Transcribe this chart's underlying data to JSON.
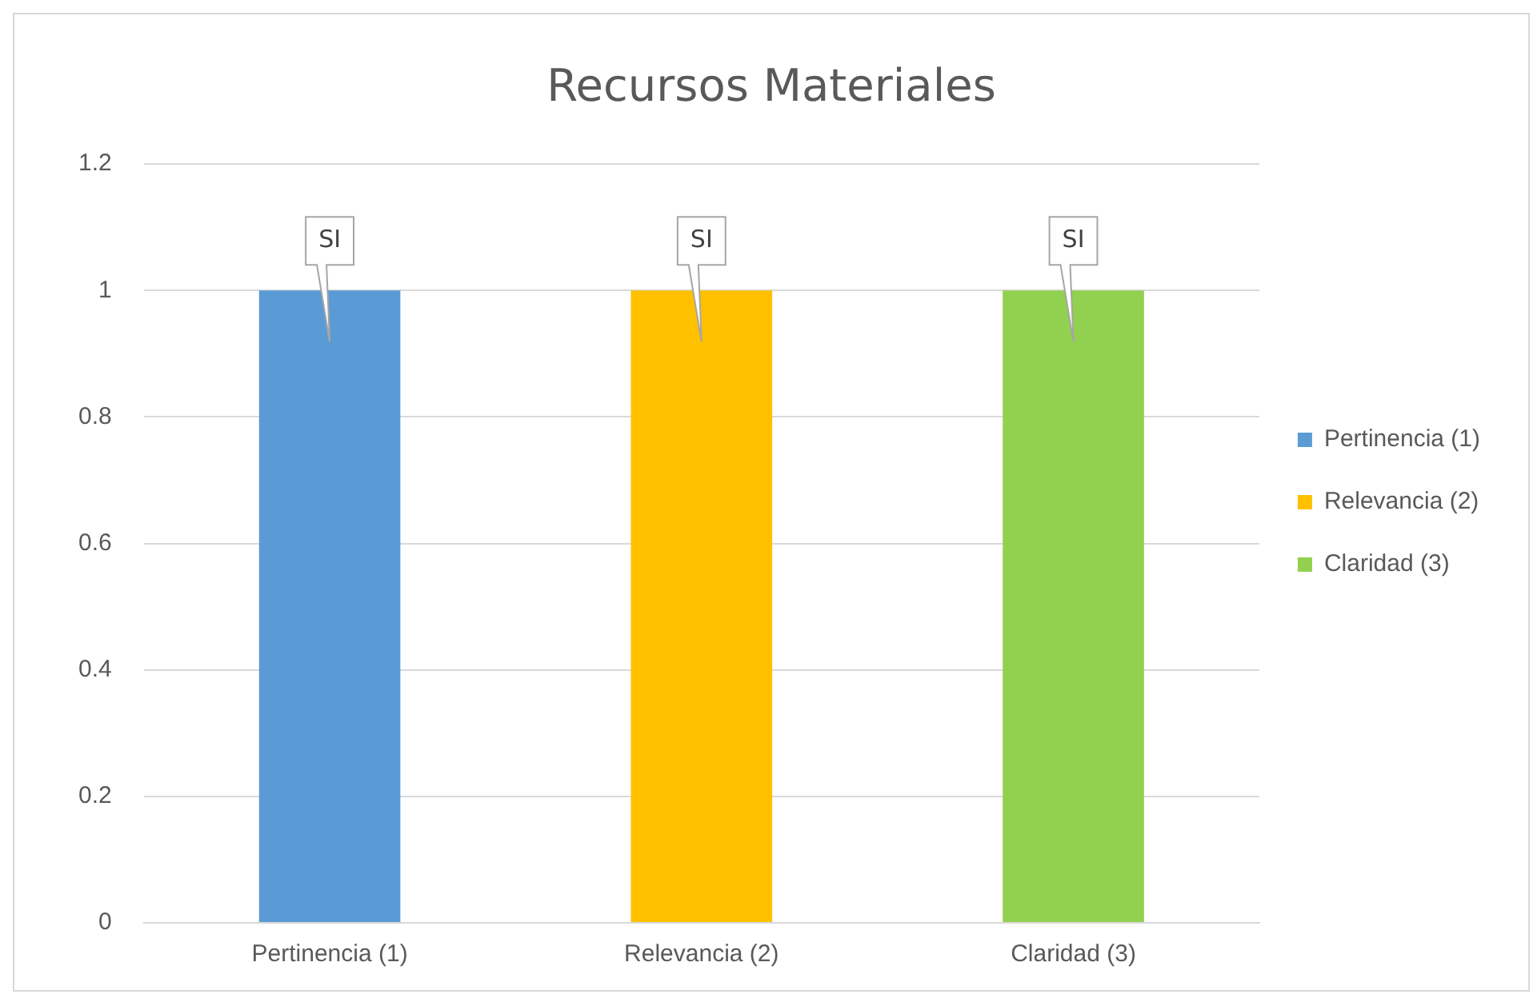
{
  "chart_data": {
    "type": "bar",
    "title": "Recursos Materiales",
    "categories": [
      "Pertinencia (1)",
      "Relevancia (2)",
      "Claridad (3)"
    ],
    "series": [
      {
        "name": "Pertinencia (1)",
        "color": "#5b9bd5",
        "values": [
          1,
          null,
          null
        ],
        "value_labels": [
          "SI",
          null,
          null
        ]
      },
      {
        "name": "Relevancia (2)",
        "color": "#ffc000",
        "values": [
          null,
          1,
          null
        ],
        "value_labels": [
          null,
          "SI",
          null
        ]
      },
      {
        "name": "Claridad (3)",
        "color": "#92d050",
        "values": [
          null,
          null,
          1
        ],
        "value_labels": [
          null,
          null,
          "SI"
        ]
      }
    ],
    "ylim": [
      0,
      1.2
    ],
    "yticks": [
      0,
      0.2,
      0.4,
      0.6,
      0.8,
      1,
      1.2
    ],
    "grid": "y",
    "legend": "right"
  }
}
